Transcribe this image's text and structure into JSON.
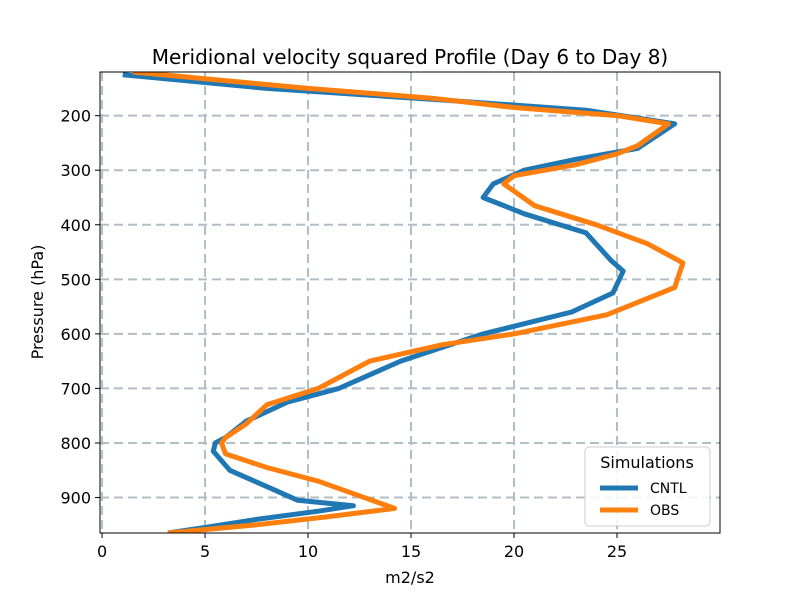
{
  "chart_data": {
    "type": "line",
    "title": "Meridional velocity squared Profile (Day 6 to Day 8)",
    "xlabel": "m2/s2",
    "ylabel": "Pressure (hPa)",
    "xlim": [
      -0.1,
      30
    ],
    "ylim": [
      965,
      120
    ],
    "y_inverted": true,
    "grid": true,
    "xticks": [
      0,
      5,
      10,
      15,
      20,
      25
    ],
    "yticks": [
      200,
      300,
      400,
      500,
      600,
      700,
      800,
      900
    ],
    "legend": {
      "title": "Simulations",
      "placement": "lower-right"
    },
    "series": [
      {
        "name": "CNTL",
        "color": "#1f77b4",
        "x": [
          1.0,
          8.0,
          16.0,
          23.5,
          27.8,
          26.0,
          23.0,
          20.5,
          19.0,
          18.5,
          20.5,
          23.5,
          24.7,
          25.3,
          24.8,
          22.8,
          18.5,
          14.5,
          11.5,
          9.0,
          7.0,
          6.0,
          5.5,
          5.4,
          6.2,
          8.0,
          9.5,
          12.2,
          10.5,
          7.5,
          5.0,
          3.2
        ],
        "y": [
          125,
          150,
          170,
          190,
          215,
          260,
          280,
          300,
          325,
          350,
          380,
          415,
          465,
          485,
          525,
          560,
          600,
          650,
          700,
          725,
          760,
          790,
          800,
          815,
          850,
          880,
          905,
          915,
          925,
          940,
          955,
          965
        ]
      },
      {
        "name": "OBS",
        "color": "#ff7f0e",
        "x": [
          1.5,
          10.0,
          16.0,
          20.0,
          25.0,
          27.5,
          26.0,
          25.0,
          23.0,
          20.0,
          19.5,
          21.0,
          24.0,
          26.5,
          28.2,
          27.8,
          24.5,
          20.0,
          16.5,
          13.0,
          10.5,
          8.0,
          7.0,
          6.0,
          5.8,
          6.0,
          8.0,
          10.5,
          14.2,
          11.0,
          7.5,
          3.2
        ],
        "y": [
          120,
          150,
          168,
          185,
          200,
          215,
          255,
          270,
          290,
          310,
          325,
          365,
          400,
          435,
          470,
          515,
          565,
          600,
          620,
          650,
          700,
          730,
          765,
          790,
          800,
          820,
          845,
          870,
          920,
          935,
          950,
          965
        ]
      }
    ]
  }
}
